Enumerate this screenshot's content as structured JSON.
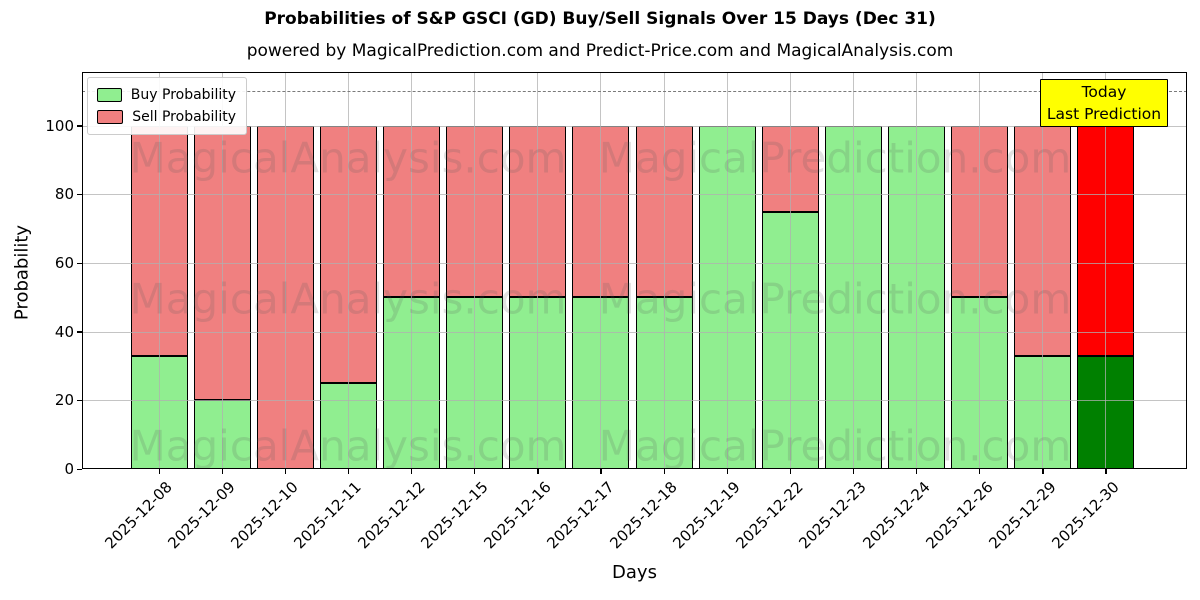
{
  "chart_data": {
    "type": "bar",
    "stacked": true,
    "title": "Probabilities of S&P GSCI (GD) Buy/Sell Signals Over 15 Days (Dec 31)",
    "subtitle": "powered by MagicalPrediction.com and Predict-Price.com and MagicalAnalysis.com",
    "xlabel": "Days",
    "ylabel": "Probability",
    "categories": [
      "2025-12-08",
      "2025-12-09",
      "2025-12-10",
      "2025-12-11",
      "2025-12-12",
      "2025-12-15",
      "2025-12-16",
      "2025-12-17",
      "2025-12-18",
      "2025-12-19",
      "2025-12-22",
      "2025-12-23",
      "2025-12-24",
      "2025-12-26",
      "2025-12-29",
      "2025-12-30"
    ],
    "series": [
      {
        "name": "Buy Probability",
        "color": "#90EE90",
        "values": [
          33,
          20,
          0,
          25,
          50,
          50,
          50,
          50,
          50,
          100,
          75,
          100,
          100,
          50,
          33,
          33
        ]
      },
      {
        "name": "Sell Probability",
        "color": "#F08080",
        "values": [
          67,
          80,
          100,
          75,
          50,
          50,
          50,
          50,
          50,
          0,
          25,
          0,
          0,
          50,
          67,
          67
        ]
      }
    ],
    "today_bar": {
      "category": "2025-12-30",
      "buy_color": "#008000",
      "sell_color": "#FF0000"
    },
    "yticks": [
      0,
      20,
      40,
      60,
      80,
      100
    ],
    "ylim": [
      0,
      115.7
    ],
    "dashed_line_y": 110,
    "grid": true,
    "legend_position": "upper-left",
    "annotation": {
      "line1": "Today",
      "line2": "Last Prediction",
      "bg_color": "#FFFF00"
    },
    "watermarks": [
      "MagicalAnalysis.com",
      "MagicalPrediction.com"
    ]
  }
}
